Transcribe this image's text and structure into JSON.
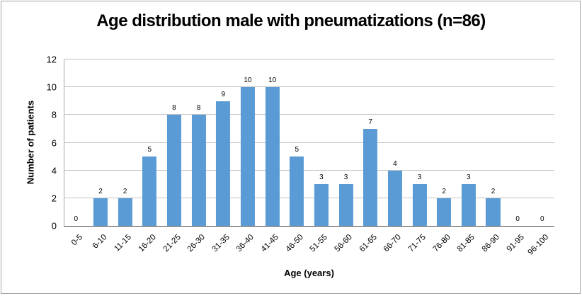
{
  "chart_data": {
    "type": "bar",
    "title": "Age distribution male with pneumatizations (n=86)",
    "xlabel": "Age (years)",
    "ylabel": "Number of patients",
    "categories": [
      "0-5",
      "6-10",
      "11-15",
      "16-20",
      "21-25",
      "26-30",
      "31-35",
      "36-40",
      "41-45",
      "46-50",
      "51-55",
      "56-60",
      "61-65",
      "66-70",
      "71-75",
      "76-80",
      "81-85",
      "86-90",
      "91-95",
      "96-100"
    ],
    "values": [
      0,
      2,
      2,
      5,
      8,
      8,
      9,
      10,
      10,
      5,
      3,
      3,
      7,
      4,
      3,
      2,
      3,
      2,
      0,
      0
    ],
    "ylim": [
      0,
      12
    ],
    "yticks": [
      0,
      2,
      4,
      6,
      8,
      10,
      12
    ],
    "grid": "horizontal",
    "legend": "none",
    "data_labels": true,
    "colors": {
      "bar": "#5b9bd5",
      "gridline": "#c3c3c3",
      "axis_line": "#595959",
      "y_axis_line": "#a6a6a6",
      "frame_border": "#a3a3a3",
      "text": "#000000"
    }
  }
}
